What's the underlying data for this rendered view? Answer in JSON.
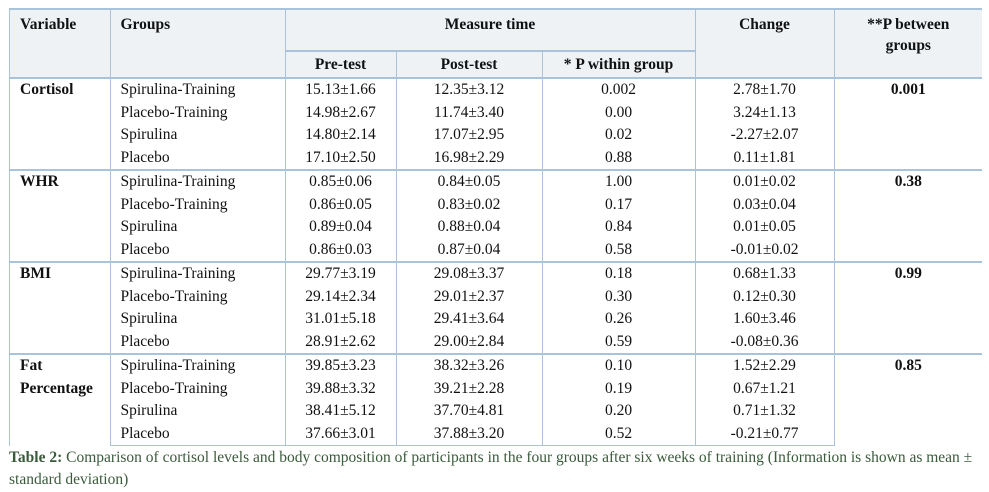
{
  "headers": {
    "variable": "Variable",
    "groups": "Groups",
    "measure_time": "Measure time",
    "pre_test": "Pre-test",
    "post_test": "Post-test",
    "p_within": "* P within group",
    "change": "Change",
    "p_between_line1": "**P between",
    "p_between_line2": "groups"
  },
  "variables": [
    {
      "name_lines": [
        "Cortisol"
      ],
      "p_between": "0.001",
      "rows": [
        {
          "group": "Spirulina-Training",
          "pre": "15.13±1.66",
          "post": "12.35±3.12",
          "p_within": "0.002",
          "change": "2.78±1.70"
        },
        {
          "group": "Placebo-Training",
          "pre": "14.98±2.67",
          "post": "11.74±3.40",
          "p_within": "0.00",
          "change": "3.24±1.13"
        },
        {
          "group": "Spirulina",
          "pre": "14.80±2.14",
          "post": "17.07±2.95",
          "p_within": "0.02",
          "change": "-2.27±2.07"
        },
        {
          "group": "Placebo",
          "pre": "17.10±2.50",
          "post": "16.98±2.29",
          "p_within": "0.88",
          "change": "0.11±1.81"
        }
      ]
    },
    {
      "name_lines": [
        "WHR"
      ],
      "p_between": "0.38",
      "rows": [
        {
          "group": "Spirulina-Training",
          "pre": "0.85±0.06",
          "post": "0.84±0.05",
          "p_within": "1.00",
          "change": "0.01±0.02"
        },
        {
          "group": "Placebo-Training",
          "pre": "0.86±0.05",
          "post": "0.83±0.02",
          "p_within": "0.17",
          "change": "0.03±0.04"
        },
        {
          "group": "Spirulina",
          "pre": "0.89±0.04",
          "post": "0.88±0.04",
          "p_within": "0.84",
          "change": "0.01±0.05"
        },
        {
          "group": "Placebo",
          "pre": "0.86±0.03",
          "post": "0.87±0.04",
          "p_within": "0.58",
          "change": "-0.01±0.02"
        }
      ]
    },
    {
      "name_lines": [
        "BMI"
      ],
      "p_between": "0.99",
      "rows": [
        {
          "group": "Spirulina-Training",
          "pre": "29.77±3.19",
          "post": "29.08±3.37",
          "p_within": "0.18",
          "change": "0.68±1.33"
        },
        {
          "group": "Placebo-Training",
          "pre": "29.14±2.34",
          "post": "29.01±2.37",
          "p_within": "0.30",
          "change": "0.12±0.30"
        },
        {
          "group": "Spirulina",
          "pre": "31.01±5.18",
          "post": "29.41±3.64",
          "p_within": "0.26",
          "change": "1.60±3.46"
        },
        {
          "group": "Placebo",
          "pre": "28.91±2.62",
          "post": "29.00±2.84",
          "p_within": "0.59",
          "change": "-0.08±0.36"
        }
      ]
    },
    {
      "name_lines": [
        "Fat",
        "Percentage"
      ],
      "p_between": "0.85",
      "rows": [
        {
          "group": "Spirulina-Training",
          "pre": "39.85±3.23",
          "post": "38.32±3.26",
          "p_within": "0.10",
          "change": "1.52±2.29"
        },
        {
          "group": "Placebo-Training",
          "pre": "39.88±3.32",
          "post": "39.21±2.28",
          "p_within": "0.19",
          "change": "0.67±1.21"
        },
        {
          "group": "Spirulina",
          "pre": "38.41±5.12",
          "post": "37.70±4.81",
          "p_within": "0.20",
          "change": "0.71±1.32"
        },
        {
          "group": "Placebo",
          "pre": "37.66±3.01",
          "post": "37.88±3.20",
          "p_within": "0.52",
          "change": "-0.21±0.77"
        }
      ]
    }
  ],
  "caption": {
    "label": "Table 2:",
    "text": " Comparison of cortisol levels and body composition of participants in the four groups after six weeks of training (Information is shown as mean ± standard deviation)"
  },
  "colors": {
    "border": "#a9c3da",
    "header_bg": "#eef2f5",
    "caption_text": "#3a5a3a"
  }
}
